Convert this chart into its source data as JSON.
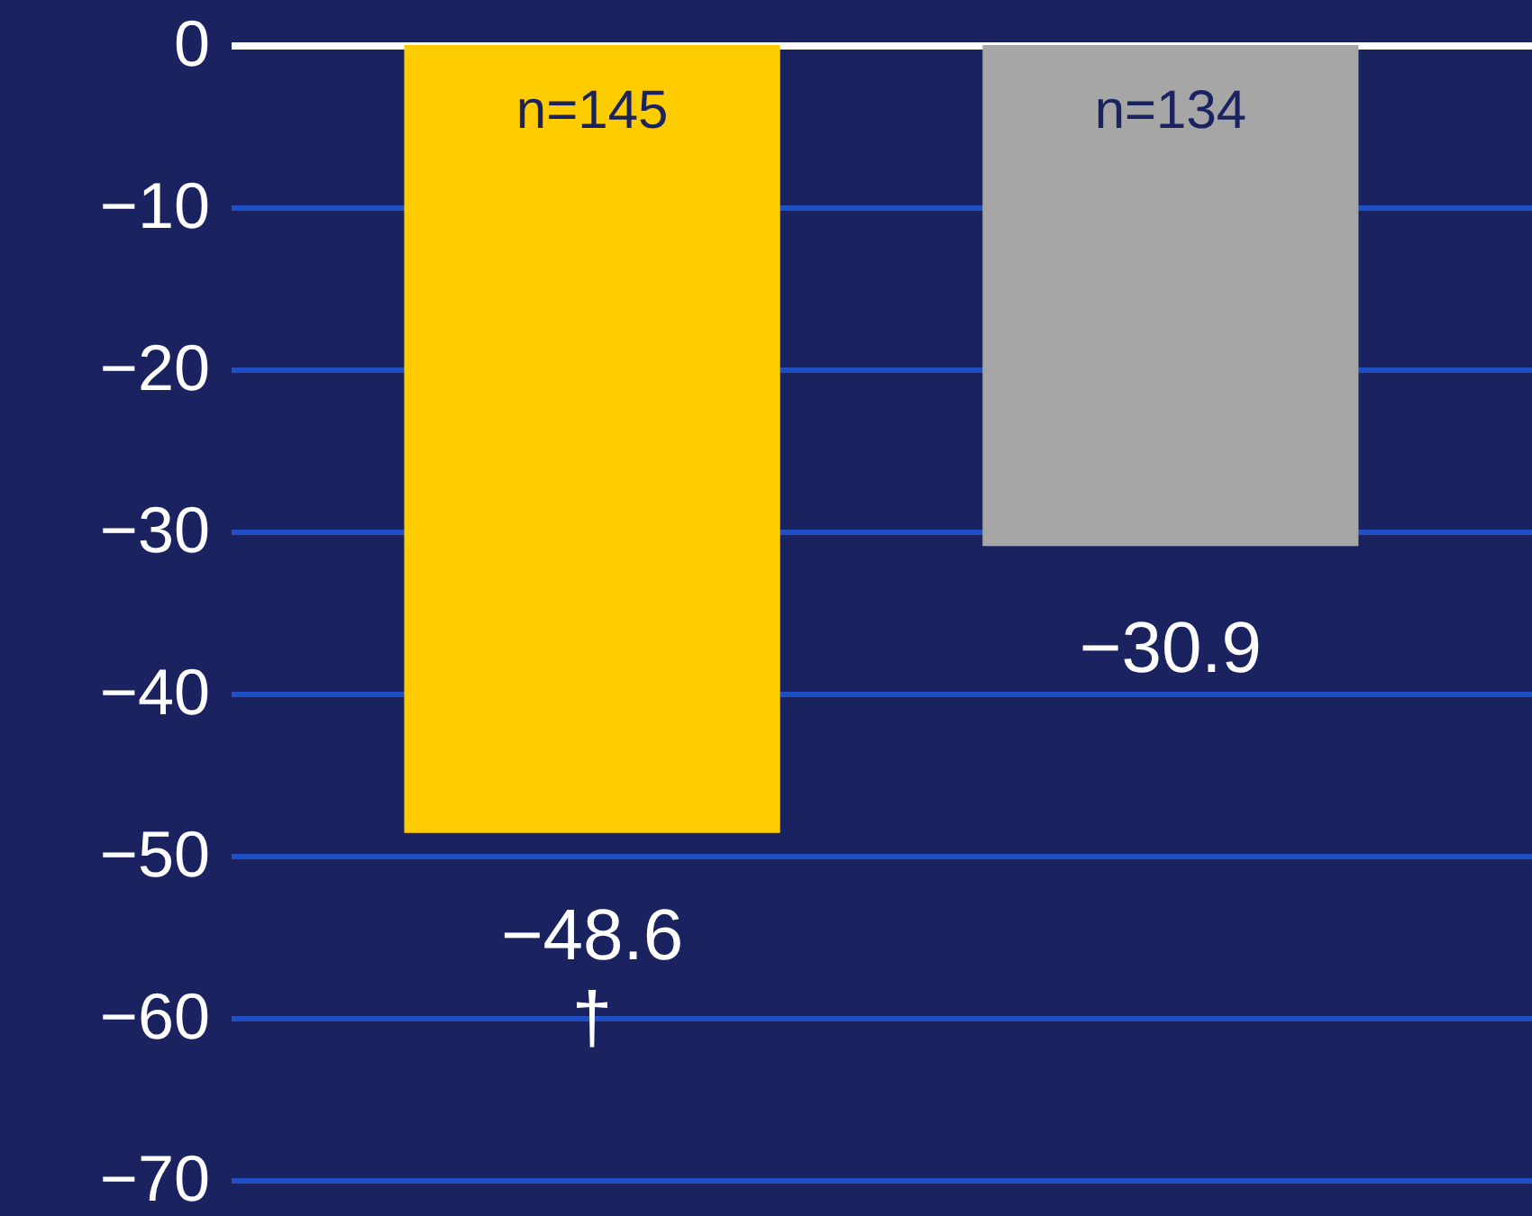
{
  "chart_data": {
    "type": "bar",
    "categories": [
      null,
      null
    ],
    "values": [
      -48.6,
      -30.9
    ],
    "colors": [
      "#ffcc00",
      "#a6a6a6"
    ],
    "value_labels": [
      "−48.6\n†",
      "−30.9"
    ],
    "annotations": [
      "n=145",
      "n=134"
    ],
    "ylim": [
      -70,
      0
    ],
    "yticks": [
      0,
      -10,
      -20,
      -30,
      -40,
      -50,
      -60,
      -70
    ],
    "grid": "y",
    "tick_labels": "y"
  }
}
